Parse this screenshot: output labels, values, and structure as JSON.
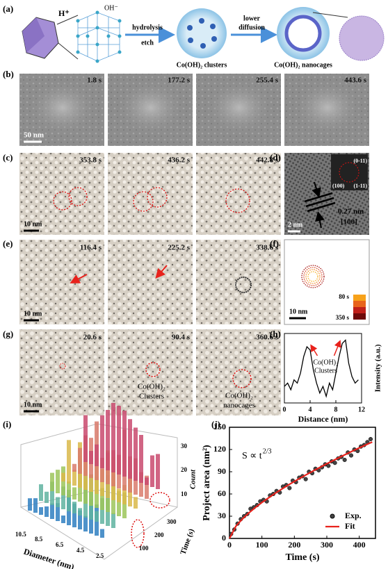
{
  "panel_a": {
    "label": "(a)",
    "h_plus": "H⁺",
    "oh": "OH⁻",
    "step1": [
      "hydrolysis",
      "etch"
    ],
    "clusters": "Co(OH)₂ clusters",
    "step2": [
      "lower",
      "diffusion"
    ],
    "nanocages": "Co(OH)₂ nanocages"
  },
  "panel_b": {
    "label": "(b)",
    "times": [
      "1.8 s",
      "177.2 s",
      "255.4 s",
      "443.6 s"
    ],
    "scale": "50 nm"
  },
  "panel_c": {
    "label": "(c)",
    "times": [
      "353.8 s",
      "436.2 s",
      "442.8 s"
    ],
    "scale": "10 nm"
  },
  "panel_d": {
    "label": "(d)",
    "scale": "2 nm",
    "spacing": "0.27 nm",
    "plane": "[100]",
    "fft": [
      "(0-11)",
      "(100)",
      "(1-11)"
    ]
  },
  "panel_e": {
    "label": "(e)",
    "times": [
      "116.4 s",
      "225.2 s",
      "338.6 s"
    ],
    "scale": "10 nm"
  },
  "panel_f": {
    "label": "(f)",
    "scale": "10 nm",
    "colorbar": [
      "80 s",
      "350 s"
    ]
  },
  "panel_g": {
    "label": "(g)",
    "times": [
      "20.6 s",
      "90.4 s",
      "360.6 s"
    ],
    "scale": "10 nm",
    "annotations": [
      "Co(OH)₂",
      "Clusters",
      "Co(OH)₂",
      "nanocages"
    ]
  },
  "panel_i": {
    "label": "(i)",
    "x_label": "Diameter (nm)",
    "y_label": "Time (s)",
    "z_label": "Count",
    "xticks": [
      "10.5",
      "8.5",
      "6.5",
      "4.5",
      "2.5"
    ],
    "yticks": [
      "100",
      "200",
      "300"
    ],
    "zticks": [
      "10",
      "20",
      "30"
    ]
  },
  "chart_data": [
    {
      "type": "line",
      "label": "(h)",
      "annotation": [
        "Co(OH)₂",
        "Clusters"
      ],
      "x_label": "Distance (nm)",
      "y_label": "Intensity (a.u.)",
      "x": [
        0,
        0.5,
        1,
        1.5,
        2,
        2.5,
        3,
        3.5,
        4,
        4.5,
        5,
        5.5,
        6,
        6.5,
        7,
        7.5,
        8,
        8.5,
        9,
        9.5,
        10,
        10.5,
        11,
        11.5
      ],
      "series": [
        {
          "color": "#000000",
          "values": [
            0.25,
            0.3,
            0.2,
            0.35,
            0.3,
            0.45,
            0.7,
            0.85,
            0.8,
            0.5,
            0.3,
            0.15,
            0.25,
            0.1,
            0.3,
            0.2,
            0.45,
            0.7,
            0.9,
            0.95,
            0.6,
            0.4,
            0.3,
            0.35
          ]
        }
      ],
      "xlim": [
        0,
        12
      ],
      "xticks": [
        0,
        4,
        8,
        12
      ],
      "ylim": [
        0,
        1.05
      ]
    },
    {
      "type": "scatter",
      "label": "(j)",
      "annotation": "S ∝ t",
      "annotation_sup": "2/3",
      "x_label": "Time (s)",
      "y_label": "Project area (nm²)",
      "series": [
        {
          "name": "Exp.",
          "color": "#000000",
          "x": [
            5,
            15,
            25,
            35,
            45,
            55,
            65,
            75,
            85,
            95,
            105,
            115,
            125,
            135,
            145,
            155,
            165,
            175,
            185,
            195,
            205,
            215,
            225,
            235,
            245,
            255,
            265,
            275,
            285,
            295,
            305,
            315,
            325,
            335,
            345,
            355,
            365,
            375,
            385,
            395,
            405,
            415,
            425,
            435
          ],
          "values": [
            6,
            12,
            20,
            26,
            30,
            33,
            40,
            42,
            45,
            50,
            52,
            50,
            58,
            60,
            64,
            62,
            70,
            72,
            68,
            78,
            76,
            82,
            84,
            80,
            90,
            88,
            94,
            92,
            96,
            100,
            98,
            104,
            102,
            108,
            110,
            106,
            116,
            112,
            120,
            118,
            124,
            126,
            130,
            134
          ]
        },
        {
          "name": "Fit",
          "color": "#e8221c",
          "x": [
            0,
            20,
            40,
            60,
            80,
            100,
            140,
            180,
            220,
            260,
            300,
            340,
            380,
            420,
            440
          ],
          "values": [
            0,
            16.6,
            26.3,
            34.5,
            41.8,
            48.5,
            60.7,
            71.8,
            82.0,
            91.6,
            100.8,
            109.6,
            118.1,
            126.2,
            130.1
          ]
        }
      ],
      "xlim": [
        0,
        450
      ],
      "xticks": [
        0,
        100,
        200,
        300,
        400
      ],
      "ylim": [
        0,
        150
      ],
      "yticks": [
        0,
        30,
        60,
        90,
        120,
        150
      ]
    }
  ]
}
